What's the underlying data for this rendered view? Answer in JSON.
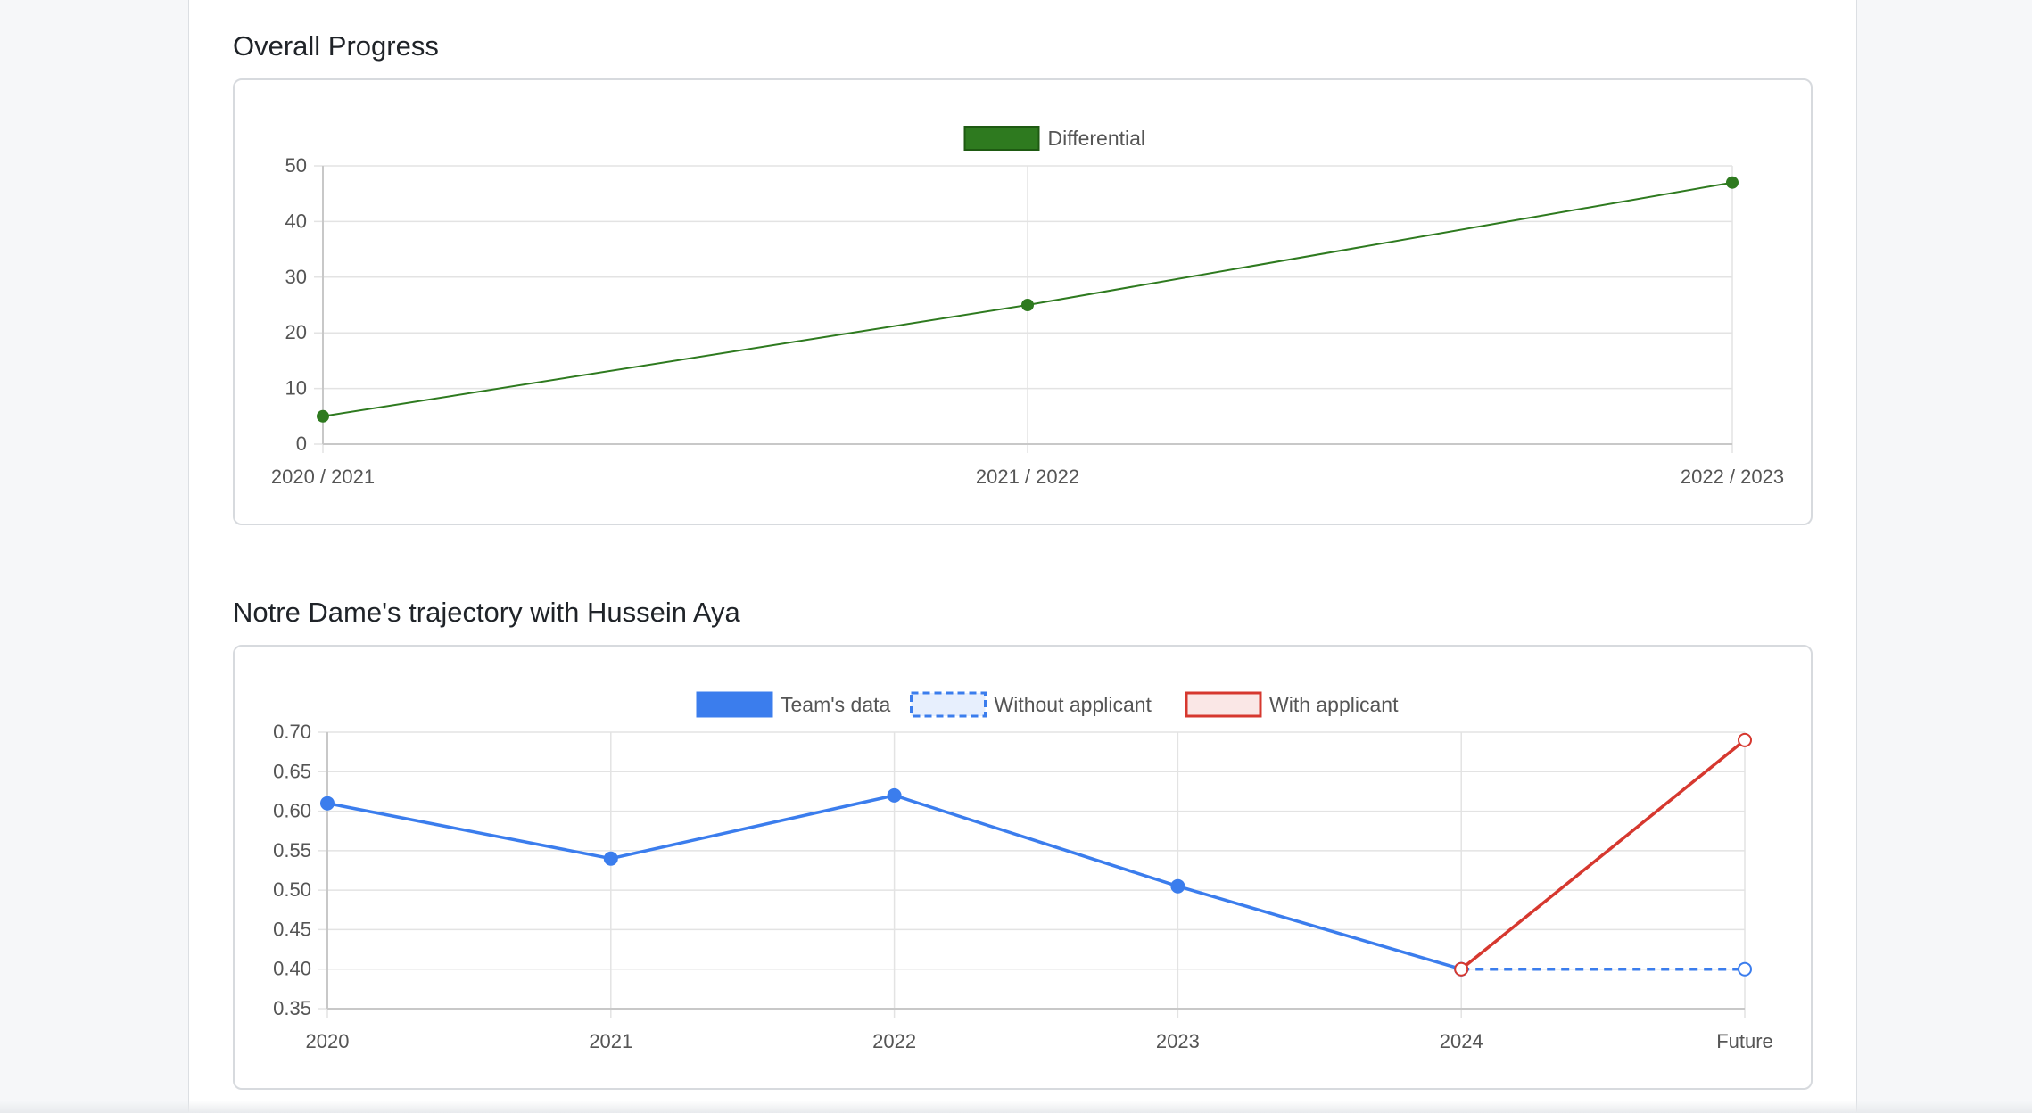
{
  "sections": [
    {
      "title": "Overall Progress"
    },
    {
      "title": "Notre Dame's trajectory with Hussein Aya"
    }
  ],
  "chart_data": [
    {
      "type": "line",
      "title": "Overall Progress",
      "categories": [
        "2020 / 2021",
        "2021 / 2022",
        "2022 / 2023"
      ],
      "series": [
        {
          "name": "Differential",
          "values": [
            5,
            25,
            47
          ],
          "color": "#2e7a1f",
          "style": "solid"
        }
      ],
      "ylim": [
        0,
        50
      ],
      "yticks": [
        0,
        10,
        20,
        30,
        40,
        50
      ],
      "ytick_labels": [
        "0",
        "10",
        "20",
        "30",
        "40",
        "50"
      ],
      "grid": true,
      "legend": "top-center"
    },
    {
      "type": "line",
      "title": "Notre Dame's trajectory with Hussein Aya",
      "categories": [
        "2020",
        "2021",
        "2022",
        "2023",
        "2024",
        "Future"
      ],
      "series": [
        {
          "name": "Team's data",
          "values": [
            0.61,
            0.54,
            0.62,
            0.505,
            0.4,
            null
          ],
          "color": "#3b7ded",
          "style": "solid"
        },
        {
          "name": "Without applicant",
          "values": [
            null,
            null,
            null,
            null,
            0.4,
            0.4
          ],
          "color": "#3b7ded",
          "style": "dashed"
        },
        {
          "name": "With applicant",
          "values": [
            null,
            null,
            null,
            null,
            0.4,
            0.69
          ],
          "color": "#d6382f",
          "style": "solid"
        }
      ],
      "ylim": [
        0.35,
        0.7
      ],
      "yticks": [
        0.35,
        0.4,
        0.45,
        0.5,
        0.55,
        0.6,
        0.65,
        0.7
      ],
      "ytick_labels": [
        "0.35",
        "0.40",
        "0.45",
        "0.50",
        "0.55",
        "0.60",
        "0.65",
        "0.70"
      ],
      "grid": true,
      "legend": "top-center"
    }
  ]
}
